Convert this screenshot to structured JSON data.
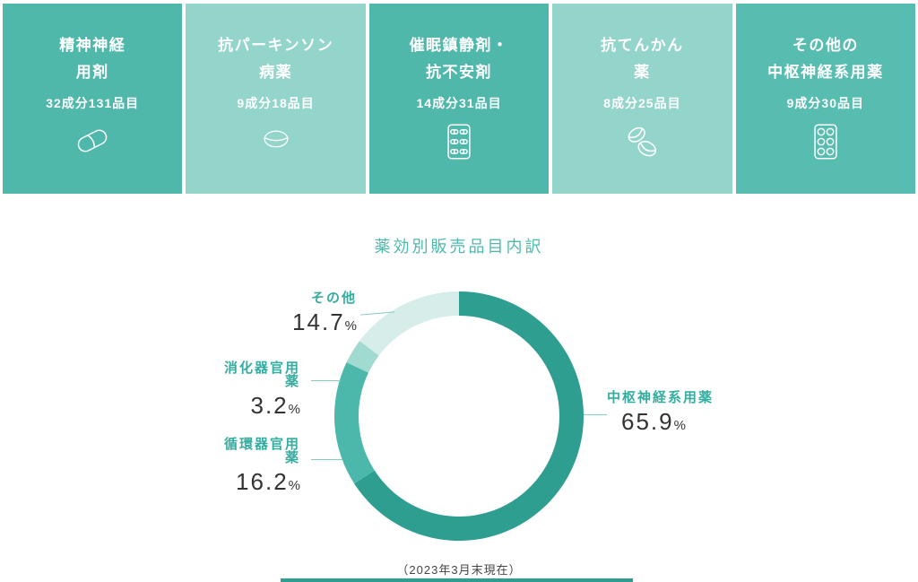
{
  "cards": [
    {
      "title_line1": "精神神経",
      "title_line2": "用剤",
      "subtitle": "32成分131品目",
      "icon": "capsule-icon",
      "variant": "dark"
    },
    {
      "title_line1": "抗パーキンソン",
      "title_line2": "病薬",
      "subtitle": "9成分18品目",
      "icon": "tablet-icon",
      "variant": "light"
    },
    {
      "title_line1": "催眠鎮静剤・",
      "title_line2": "抗不安剤",
      "subtitle": "14成分31品目",
      "icon": "blister-capsules-icon",
      "variant": "dark"
    },
    {
      "title_line1": "抗てんかん",
      "title_line2": "薬",
      "subtitle": "8成分25品目",
      "icon": "two-pills-icon",
      "variant": "light"
    },
    {
      "title_line1": "その他の",
      "title_line2": "中枢神経系用薬",
      "subtitle": "9成分30品目",
      "icon": "blister-round-icon",
      "variant": "dark2"
    }
  ],
  "chart": {
    "title": "薬効別販売品目内訳",
    "footnote": "（2023年3月末現在）"
  },
  "chart_data": {
    "type": "pie",
    "subtype": "donut",
    "title": "薬効別販売品目内訳",
    "unit": "%",
    "start_angle": "top",
    "direction": "clockwise",
    "segments": [
      {
        "label": "中枢神経系用薬",
        "value": 65.9,
        "color": "#2d9e90"
      },
      {
        "label": "循環器官用薬",
        "value": 16.2,
        "color": "#4cb8ab"
      },
      {
        "label": "消化器官用薬",
        "value": 3.2,
        "color": "#a0dad0"
      },
      {
        "label": "その他",
        "value": 14.7,
        "color": "#d6ede9"
      }
    ],
    "note": "（2023年3月末現在）"
  },
  "colors": {
    "card_dark": "#4fb8ab",
    "card_light": "#93d5ca",
    "card_dark2": "#58bdb1",
    "title_teal": "#4cb9ac",
    "label_teal": "#35ada0",
    "value_text": "#333333",
    "leader_line": "#86ccc1",
    "bottom_bar": "#2d9e90"
  }
}
